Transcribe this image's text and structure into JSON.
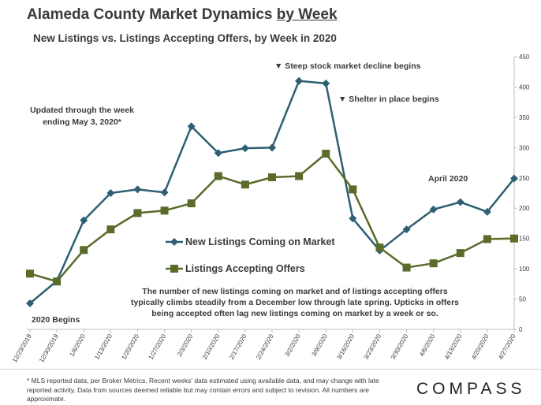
{
  "header": {
    "title_main": "Alameda County Market Dynamics ",
    "title_emph": "by Week",
    "subtitle": "New Listings vs. Listings Accepting Offers, by Week in 2020"
  },
  "annotations": {
    "updated_line1": "Updated through the week",
    "updated_line2": "ending May 3, 2020*",
    "stock_decline": "▼ Steep stock market decline begins",
    "shelter": "▼ Shelter in place begins",
    "april": "April 2020",
    "begins": "2020 Begins",
    "body": "The number of new listings coming on market and of listings accepting offers typically climbs steadily from a December low through late spring. Upticks in offers being accepted often lag new listings coming on market by a week or so."
  },
  "footer": {
    "footnote": "* MLS reported data, per Broker Metrics. Recent weeks' data estimated using available data, and may change with late reported activity. Data from sources deemed reliable but may contain errors and subject to revision. All numbers are approximate.",
    "logo": "COMPASS"
  },
  "colors": {
    "new_listings": "#2e5f73",
    "offers": "#5a6b2a",
    "gridline": "#d9d9d9"
  },
  "chart_data": {
    "type": "line",
    "title": "Alameda County Market Dynamics by Week",
    "subtitle": "New Listings vs. Listings Accepting Offers, by Week in 2020",
    "categories": [
      "12/23/2019",
      "12/30/2019",
      "1/6/2020",
      "1/13/2020",
      "1/20/2020",
      "1/27/2020",
      "2/3/2020",
      "2/10/2020",
      "2/17/2020",
      "2/24/2020",
      "3/2/2020",
      "3/9/2020",
      "3/16/2020",
      "3/23/2020",
      "3/30/2020",
      "4/6/2020",
      "4/13/2020",
      "4/20/2020",
      "4/27/2020"
    ],
    "series": [
      {
        "name": "New Listings Coming on Market",
        "marker": "diamond",
        "values": [
          43,
          80,
          180,
          225,
          231,
          226,
          335,
          291,
          299,
          300,
          410,
          406,
          183,
          130,
          165,
          198,
          210,
          194,
          249
        ]
      },
      {
        "name": "Listings Accepting Offers",
        "marker": "square",
        "values": [
          92,
          79,
          131,
          165,
          192,
          196,
          208,
          253,
          239,
          251,
          253,
          290,
          231,
          135,
          102,
          109,
          126,
          149,
          150
        ]
      }
    ],
    "y_axis": {
      "position": "right",
      "min": 0,
      "max": 450,
      "ticks": [
        0,
        50,
        100,
        150,
        200,
        250,
        300,
        350,
        400,
        450
      ]
    },
    "xlabel": "",
    "ylabel": "",
    "grid": false
  }
}
